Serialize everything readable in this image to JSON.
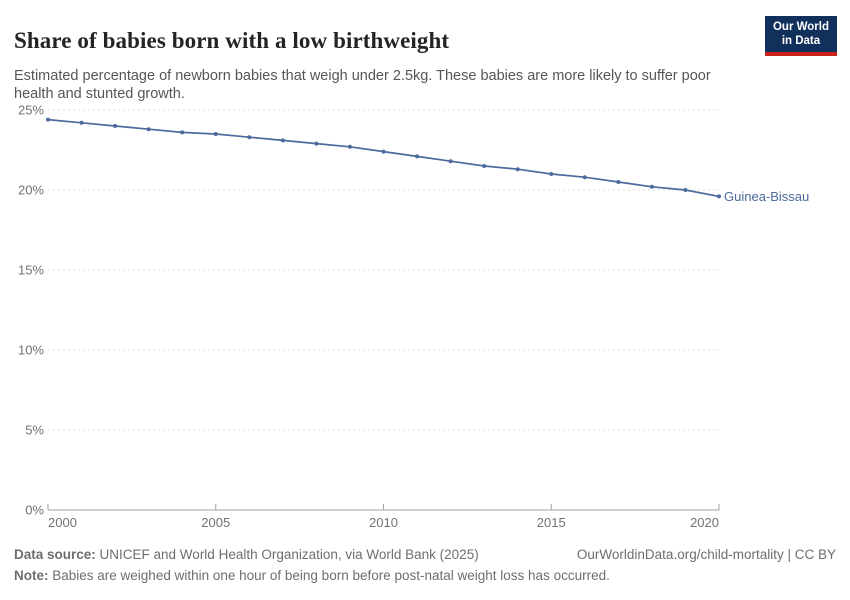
{
  "header": {
    "title": "Share of babies born with a low birthweight",
    "subtitle": "Estimated percentage of newborn babies that weigh under 2.5kg. These babies are more likely to suffer poor health and stunted growth.",
    "logo": {
      "line1": "Our World",
      "line2": "in Data"
    }
  },
  "chart_data": {
    "type": "line",
    "title": "Share of babies born with a low birthweight",
    "x": [
      2000,
      2001,
      2002,
      2003,
      2004,
      2005,
      2006,
      2007,
      2008,
      2009,
      2010,
      2011,
      2012,
      2013,
      2014,
      2015,
      2016,
      2017,
      2018,
      2019,
      2020
    ],
    "series": [
      {
        "name": "Guinea-Bissau",
        "color": "#4c6a9c",
        "values": [
          24.4,
          24.2,
          24.0,
          23.8,
          23.6,
          23.5,
          23.3,
          23.1,
          22.9,
          22.7,
          22.4,
          22.1,
          21.8,
          21.5,
          21.3,
          21.0,
          20.8,
          20.5,
          20.2,
          20.0,
          19.6
        ]
      }
    ],
    "xlabel": "",
    "ylabel": "",
    "ylim": [
      0,
      25
    ],
    "yticks": [
      0,
      5,
      10,
      15,
      20,
      25
    ],
    "ytick_suffix": "%",
    "xticks": [
      2000,
      2005,
      2010,
      2015,
      2020
    ],
    "grid": "horizontal-dashed",
    "legend_position": "end-of-line-label"
  },
  "footer": {
    "datasource_label": "Data source:",
    "datasource_text": " UNICEF and World Health Organization, via World Bank (2025)",
    "link_text": "OurWorldinData.org/child-mortality | CC BY",
    "note_label": "Note:",
    "note_text": " Babies are weighed within one hour of being born before post-natal weight loss has occurred."
  },
  "colors": {
    "line": "#4c6a9c",
    "grid": "#dcdcdc",
    "axis": "#a1a1a1",
    "tick_text": "#737373",
    "logo_navy": "#12305c",
    "logo_red": "#c8231a"
  }
}
